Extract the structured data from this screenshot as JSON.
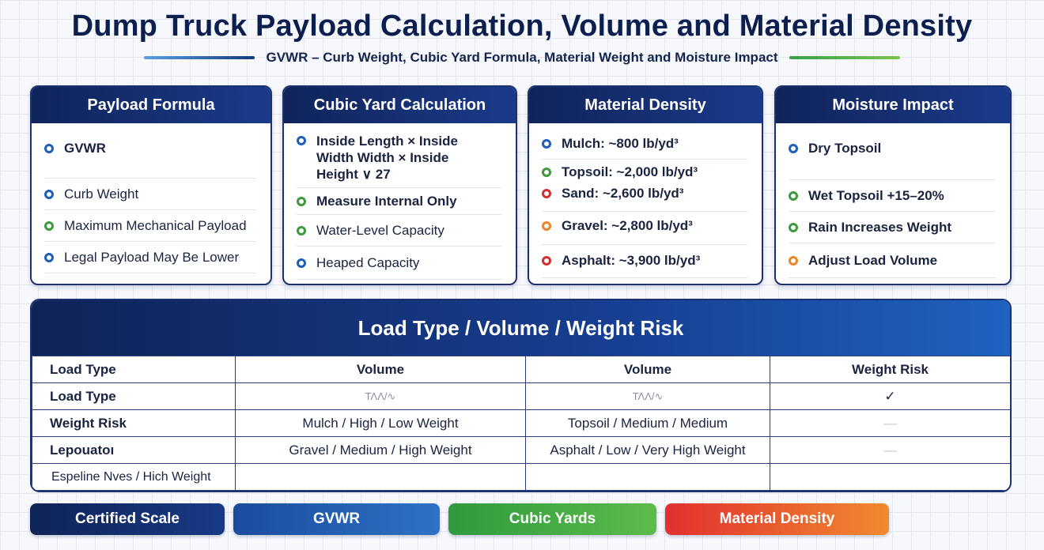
{
  "title": "Dump Truck Payload Calculation, Volume and Material Density",
  "subtitle": "GVWR – Curb Weight, Cubic Yard Formula, Material Weight and Moisture Impact",
  "colors": {
    "navy": "#10245a",
    "blue": "#1e5fb8",
    "green": "#3e9a3c",
    "red": "#d3302f",
    "orange": "#e9862a"
  },
  "cards": [
    {
      "title": "Payload Formula",
      "items": [
        {
          "text": "GVWR",
          "dot": "blue",
          "bold": true
        },
        {
          "text": "Curb Weight",
          "dot": "blue",
          "bold": false
        },
        {
          "text": "Maximum Mechanical Payload",
          "dot": "green",
          "bold": false
        },
        {
          "text": "Legal Payload May Be Lower",
          "dot": "blue",
          "bold": false
        }
      ]
    },
    {
      "title": "Cubic Yard Calculation",
      "items": [
        {
          "text": "Inside Length × Inside Width Width × Inside Height  ∨ 27",
          "dot": "blue",
          "bold": true
        },
        {
          "text": "Measure Internal Only",
          "dot": "green",
          "bold": true
        },
        {
          "text": "Water-Level Capacity",
          "dot": "green",
          "bold": false
        },
        {
          "text": "Heaped Capacity",
          "dot": "blue",
          "bold": false
        }
      ]
    },
    {
      "title": "Material Density",
      "items": [
        {
          "text": "Mulch: ~800 lb/yd³",
          "dot": "blue",
          "bold": true
        },
        {
          "text": "Topsoil: ~2,000 lb/yd³",
          "dot": "green",
          "bold": true
        },
        {
          "text": "Sand: ~2,600 lb/yd³",
          "dot": "red",
          "bold": true
        },
        {
          "text": "Gravel: ~2,800 lb/yd³",
          "dot": "orange",
          "bold": true
        },
        {
          "text": "Asphalt: ~3,900 lb/yd³",
          "dot": "red",
          "bold": true
        }
      ]
    },
    {
      "title": "Moisture Impact",
      "items": [
        {
          "text": "Dry Topsoil",
          "dot": "blue",
          "bold": true
        },
        {
          "text": "Wet Topsoil +15–20%",
          "dot": "green",
          "bold": true
        },
        {
          "text": "Rain Increases Weight",
          "dot": "green",
          "bold": true
        },
        {
          "text": "Adjust Load Volume",
          "dot": "orange",
          "bold": true
        }
      ]
    }
  ],
  "table": {
    "title": "Load Type / Volume / Weight Risk",
    "headers": [
      "Load Type",
      "Volume",
      "Volume",
      "Weight Risk"
    ],
    "rows": [
      [
        "Load Type",
        "ΤΛΛ/∿",
        "ΤΛΛ/∿",
        "✓"
      ],
      [
        "Weight Risk",
        "Mulch / High / Low Weight",
        "Topsoil / Medium / Medium",
        "—"
      ],
      [
        "Lepouatoı",
        "Gravel / Medium / High Weight",
        "Asphalt / Low / Very High Weight",
        "—"
      ],
      [
        "Espeline Nves / Hich Weight",
        "",
        "",
        ""
      ]
    ]
  },
  "buttons": [
    "Certified Scale",
    "GVWR",
    "Cubic Yards",
    "Material Density"
  ]
}
